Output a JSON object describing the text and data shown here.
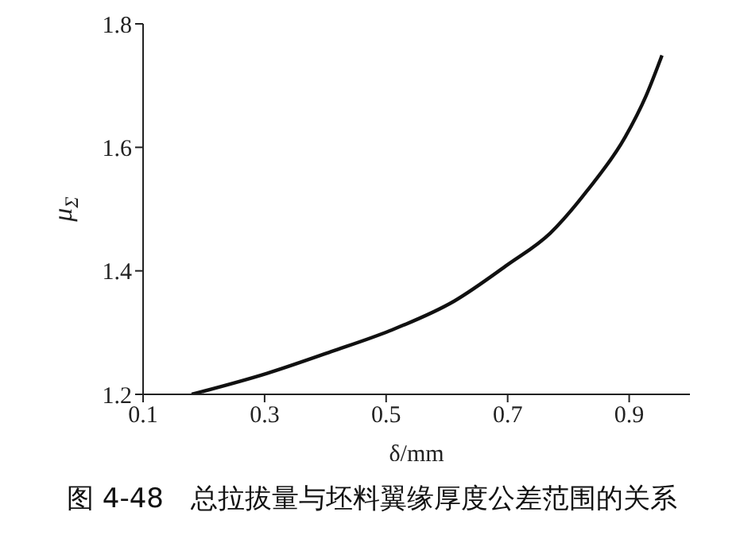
{
  "chart_data": {
    "type": "line",
    "title": "图 4-48　总拉拔量与坯料翼缘厚度公差范围的关系",
    "xlabel": "δ/mm",
    "ylabel": "μ$_{Σ}$",
    "x": [
      0.18,
      0.304,
      0.409,
      0.506,
      0.612,
      0.7,
      0.77,
      0.831,
      0.893,
      0.928,
      0.954
    ],
    "series": [
      {
        "color": "#111111",
        "values": [
          1.2,
          1.234,
          1.269,
          1.303,
          1.351,
          1.41,
          1.461,
          1.53,
          1.616,
          1.684,
          1.749
        ]
      }
    ],
    "xlim": [
      0.1,
      1.0
    ],
    "xticks": [
      0.1,
      0.3,
      0.5,
      0.7,
      0.9
    ],
    "ylim": [
      1.2,
      1.8
    ],
    "yticks": [
      1.2,
      1.4,
      1.6,
      1.8
    ],
    "grid": false,
    "legend": false,
    "marker": "none",
    "line_style": "solid"
  }
}
